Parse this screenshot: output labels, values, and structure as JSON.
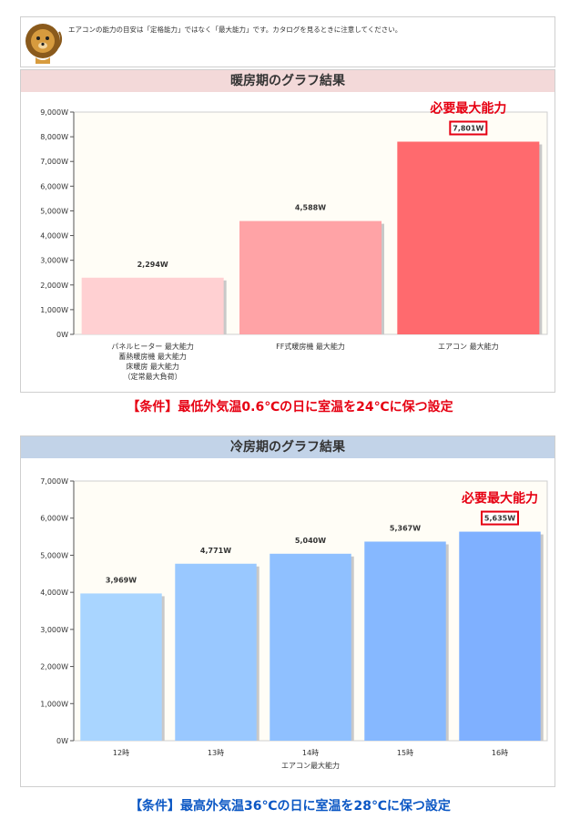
{
  "notice": {
    "text": "エアコンの能力の目安は「定格能力」ではなく「最大能力」です。カタログを見るときに注意してください。",
    "icon": "lion-icon"
  },
  "heating": {
    "panel_title": "暖房期のグラフ結果",
    "condition": "【条件】最低外気温0.6℃の日に室温を24℃に保つ設定",
    "chart_data": {
      "type": "bar",
      "title": "",
      "xlabel": "",
      "ylabel": "",
      "ylim": [
        0,
        9000
      ],
      "yticks": [
        "0W",
        "1,000W",
        "2,000W",
        "3,000W",
        "4,000W",
        "5,000W",
        "6,000W",
        "7,000W",
        "8,000W",
        "9,000W"
      ],
      "categories": [
        [
          "パネルヒーター 最大能力",
          "蓄熱暖房機 最大能力",
          "床暖房 最大能力",
          "（定常最大負荷）"
        ],
        [
          "FF式暖房機 最大能力"
        ],
        [
          "エアコン 最大能力"
        ]
      ],
      "values": [
        2294,
        4588,
        7801
      ],
      "value_labels": [
        "2,294W",
        "4,588W",
        "7,801W"
      ],
      "colors": [
        "#ffd0d2",
        "#ffa3a6",
        "#ff6a6e"
      ],
      "highlight_index": 2,
      "annotation": "必要最大能力",
      "grid": false
    }
  },
  "cooling": {
    "panel_title": "冷房期のグラフ結果",
    "condition": "【条件】最高外気温36℃の日に室温を28℃に保つ設定",
    "chart_data": {
      "type": "bar",
      "title": "",
      "xlabel": "エアコン最大能力",
      "ylabel": "",
      "ylim": [
        0,
        7000
      ],
      "yticks": [
        "0W",
        "1,000W",
        "2,000W",
        "3,000W",
        "4,000W",
        "5,000W",
        "6,000W",
        "7,000W"
      ],
      "categories": [
        "12時",
        "13時",
        "14時",
        "15時",
        "16時"
      ],
      "values": [
        3969,
        4771,
        5040,
        5367,
        5635
      ],
      "value_labels": [
        "3,969W",
        "4,771W",
        "5,040W",
        "5,367W",
        "5,635W"
      ],
      "colors": [
        "#a9d5ff",
        "#99c8ff",
        "#8fc0ff",
        "#86b8ff",
        "#7fb0ff"
      ],
      "highlight_index": 4,
      "annotation": "必要最大能力",
      "grid": false
    }
  }
}
